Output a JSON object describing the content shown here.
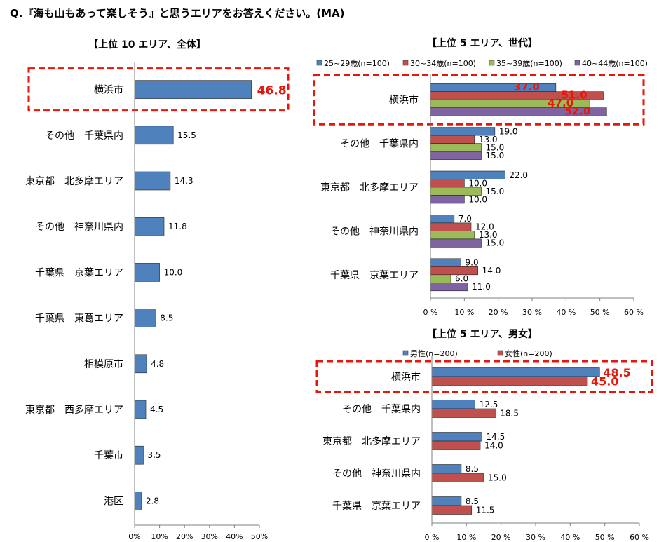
{
  "page": {
    "title": "Q.『海も山もあって楽しそう』と思うエリアをお答えください。(MA)"
  },
  "chart_data": [
    {
      "type": "bar",
      "orientation": "horizontal",
      "title": "【上位 10 エリア、全体】",
      "categories": [
        "横浜市",
        "その他　千葉県内",
        "東京都　北多摩エリア",
        "その他　神奈川県内",
        "千葉県　京葉エリア",
        "千葉県　東葛エリア",
        "相模原市",
        "東京都　西多摩エリア",
        "千葉市",
        "港区"
      ],
      "series": [
        {
          "values": [
            46.8,
            15.5,
            14.3,
            11.8,
            10.0,
            8.5,
            4.8,
            4.5,
            3.5,
            2.8
          ],
          "color": "#4f81bd"
        }
      ],
      "value_labels": [
        "46.8",
        "15.5",
        "14.3",
        "11.8",
        "10.0",
        "8.5",
        "4.8",
        "4.5",
        "3.5",
        "2.8"
      ],
      "xlim": [
        0,
        50
      ],
      "xticks": [
        0,
        10,
        20,
        30,
        40,
        50
      ],
      "tick_labels": [
        "0%",
        "10%",
        "20%",
        "30%",
        "40%",
        "50%"
      ],
      "highlight_category": "横浜市",
      "highlight_color": "#e8150b",
      "grid": false,
      "legend": "none"
    },
    {
      "type": "bar",
      "orientation": "horizontal",
      "title": "【上位 5 エリア、世代】",
      "categories": [
        "横浜市",
        "その他　千葉県内",
        "東京都　北多摩エリア",
        "その他　神奈川県内",
        "千葉県　京葉エリア"
      ],
      "series": [
        {
          "name": "25~29歳(n=100)",
          "values": [
            37.0,
            19.0,
            22.0,
            7.0,
            9.0
          ],
          "labels": [
            "37.0",
            "19.0",
            "22.0",
            "7.0",
            "9.0"
          ],
          "color": "#4f81bd"
        },
        {
          "name": "30~34歳(n=100)",
          "values": [
            51.0,
            13.0,
            10.0,
            12.0,
            14.0
          ],
          "labels": [
            "51.0",
            "13.0",
            "10.0",
            "12.0",
            "14.0"
          ],
          "color": "#c0504d"
        },
        {
          "name": "35~39歳(n=100)",
          "values": [
            47.0,
            15.0,
            15.0,
            13.0,
            6.0
          ],
          "labels": [
            "47.0",
            "15.0",
            "15.0",
            "13.0",
            "6.0"
          ],
          "color": "#9bbb59"
        },
        {
          "name": "40~44歳(n=100)",
          "values": [
            52.0,
            15.0,
            10.0,
            15.0,
            11.0
          ],
          "labels": [
            "52.0",
            "15.0",
            "10.0",
            "15.0",
            "11.0"
          ],
          "color": "#8064a2"
        }
      ],
      "xlim": [
        0,
        60
      ],
      "xticks": [
        0,
        10,
        20,
        30,
        40,
        50,
        60
      ],
      "tick_labels": [
        "0 %",
        "10 %",
        "20 %",
        "30 %",
        "40 %",
        "50 %",
        "60 %"
      ],
      "highlight_category": "横浜市",
      "highlight_color": "#e8150b",
      "grid": false,
      "legend": "top"
    },
    {
      "type": "bar",
      "orientation": "horizontal",
      "title": "【上位 5 エリア、男女】",
      "categories": [
        "横浜市",
        "その他　千葉県内",
        "東京都　北多摩エリア",
        "その他　神奈川県内",
        "千葉県　京葉エリア"
      ],
      "series": [
        {
          "name": "男性(n=200)",
          "values": [
            48.5,
            12.5,
            14.5,
            8.5,
            8.5
          ],
          "labels": [
            "48.5",
            "12.5",
            "14.5",
            "8.5",
            "8.5"
          ],
          "color": "#4f81bd"
        },
        {
          "name": "女性(n=200)",
          "values": [
            45.0,
            18.5,
            14.0,
            15.0,
            11.5
          ],
          "labels": [
            "45.0",
            "18.5",
            "14.0",
            "15.0",
            "11.5"
          ],
          "color": "#c0504d"
        }
      ],
      "xlim": [
        0,
        60
      ],
      "xticks": [
        0,
        10,
        20,
        30,
        40,
        50,
        60
      ],
      "tick_labels": [
        "0 %",
        "10 %",
        "20 %",
        "30 %",
        "40 %",
        "50 %",
        "60 %"
      ],
      "highlight_category": "横浜市",
      "highlight_color": "#e8150b",
      "grid": false,
      "legend": "top"
    }
  ]
}
